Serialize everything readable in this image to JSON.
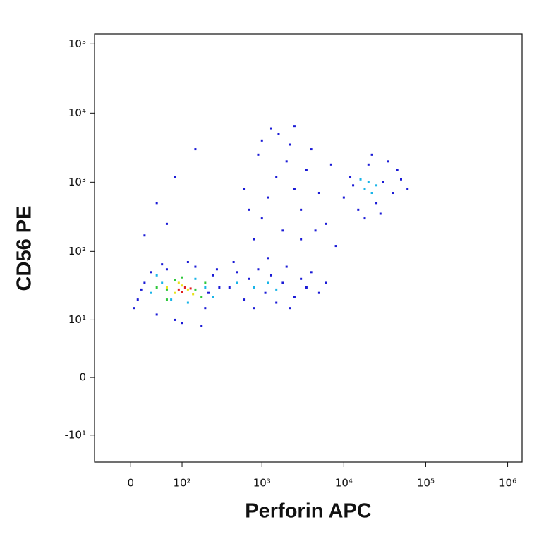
{
  "chart_data": {
    "type": "scatter",
    "x_label": "Perforin APC",
    "y_label": "CD56 PE",
    "xscale": "biexponential",
    "yscale": "biexponential",
    "xlim": [
      -60,
      1500000
    ],
    "ylim": [
      -25,
      140000
    ],
    "xticks": [
      0,
      {
        "value": 100,
        "label": "10²"
      },
      {
        "value": 1000,
        "label": "10³"
      },
      {
        "value": 10000,
        "label": "10⁴"
      },
      {
        "value": 100000,
        "label": "10⁵"
      },
      {
        "value": 1000000,
        "label": "10⁶"
      }
    ],
    "yticks": [
      {
        "value": -10,
        "label": "-10¹"
      },
      0,
      {
        "value": 10,
        "label": "10¹"
      },
      {
        "value": 100,
        "label": "10²"
      },
      {
        "value": 1000,
        "label": "10³"
      },
      {
        "value": 10000,
        "label": "10⁴"
      },
      {
        "value": 100000,
        "label": "10⁵"
      }
    ],
    "series": [
      {
        "color": "#1a1ad6",
        "x": [
          10,
          20,
          5,
          30,
          40,
          60,
          80,
          150,
          200,
          250,
          300,
          180,
          120,
          15,
          50,
          100,
          220,
          280,
          400,
          500,
          600,
          700,
          800,
          900,
          1100,
          1300,
          1500,
          1800,
          2000,
          2500,
          3000,
          3500,
          4000,
          5000,
          6000,
          450,
          1200,
          2200,
          800,
          1000,
          1200,
          1500,
          1000,
          1300,
          1600,
          2000,
          2500,
          3000,
          3500,
          4000,
          2500,
          1800,
          5000,
          6000,
          7000,
          700,
          900,
          3000,
          4500,
          8000,
          600,
          2200,
          10000,
          12000,
          15000,
          20000,
          25000,
          30000,
          35000,
          40000,
          18000,
          22000,
          50000,
          60000,
          13000,
          28000,
          45000,
          40,
          80,
          150,
          20,
          60
        ],
        "values": [
          20,
          35,
          15,
          50,
          12,
          55,
          10,
          60,
          15,
          45,
          30,
          8,
          70,
          28,
          65,
          9,
          25,
          55,
          30,
          50,
          20,
          40,
          15,
          55,
          25,
          45,
          18,
          35,
          60,
          22,
          40,
          30,
          50,
          25,
          35,
          70,
          80,
          15,
          150,
          300,
          600,
          1200,
          4000,
          6000,
          5000,
          2000,
          800,
          400,
          1500,
          3000,
          6500,
          200,
          700,
          250,
          1800,
          400,
          2500,
          150,
          200,
          120,
          800,
          3500,
          600,
          1200,
          400,
          1800,
          500,
          1000,
          2000,
          700,
          300,
          2500,
          1100,
          800,
          900,
          350,
          1500,
          500,
          1200,
          3000,
          170,
          250
        ]
      },
      {
        "color": "#18b4e8",
        "x": [
          30,
          50,
          70,
          150,
          200,
          40,
          120,
          250,
          500,
          800,
          1200,
          1500,
          18000,
          20000,
          22000,
          16000,
          25000
        ],
        "values": [
          25,
          35,
          20,
          40,
          30,
          45,
          18,
          22,
          35,
          30,
          35,
          28,
          800,
          1000,
          700,
          1100,
          900
        ]
      },
      {
        "color": "#2ec83a",
        "x": [
          40,
          60,
          80,
          150,
          180,
          60,
          100,
          200
        ],
        "values": [
          30,
          28,
          38,
          28,
          22,
          20,
          42,
          35
        ]
      },
      {
        "color": "#e8e21a",
        "x": [
          60,
          80,
          100,
          120,
          140,
          90
        ],
        "values": [
          30,
          25,
          32,
          28,
          24,
          35
        ]
      },
      {
        "color": "#e02020",
        "x": [
          90,
          110,
          100,
          130
        ],
        "values": [
          28,
          30,
          26,
          29
        ]
      }
    ]
  }
}
